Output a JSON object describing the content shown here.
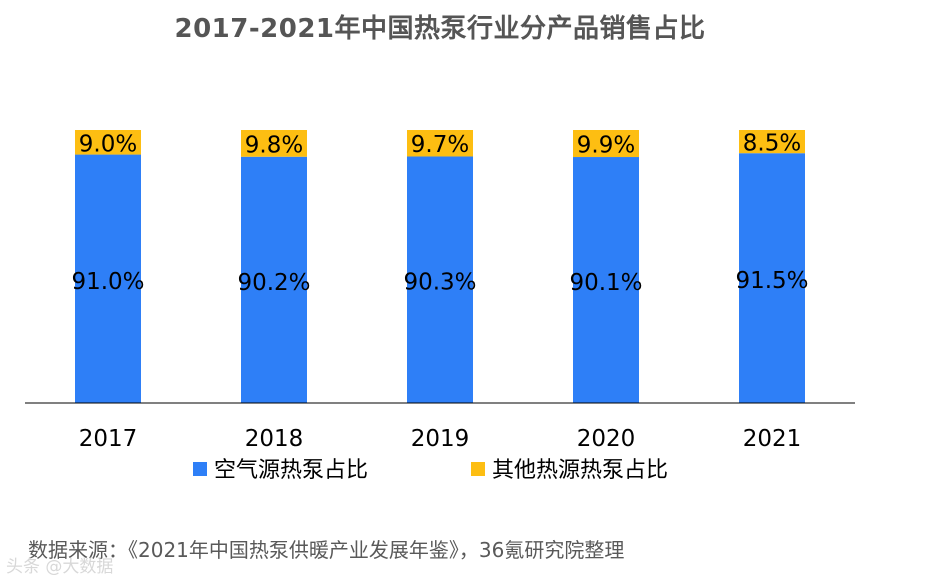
{
  "chart_data": {
    "type": "bar",
    "stacked": true,
    "title": "2017-2021年中国热泵行业分产品销售占比",
    "categories": [
      "2017",
      "2018",
      "2019",
      "2020",
      "2021"
    ],
    "series": [
      {
        "name": "空气源热泵占比",
        "color": "#2E7FF7",
        "values": [
          91.0,
          90.2,
          90.3,
          90.1,
          91.5
        ],
        "labels": [
          "91.0%",
          "90.2%",
          "90.3%",
          "90.1%",
          "91.5%"
        ]
      },
      {
        "name": "其他热源热泵占比",
        "color": "#FDBE12",
        "values": [
          9.0,
          9.8,
          9.7,
          9.9,
          8.5
        ],
        "labels": [
          "9.0%",
          "9.8%",
          "9.7%",
          "9.9%",
          "8.5%"
        ]
      }
    ],
    "ylim": [
      0,
      100
    ],
    "xlabel": "",
    "ylabel": "",
    "legend_position": "bottom",
    "grid": false
  },
  "source": "数据来源：《2021年中国热泵供暖产业发展年鉴》，36氪研究院整理",
  "watermark": "头条 @大数据"
}
